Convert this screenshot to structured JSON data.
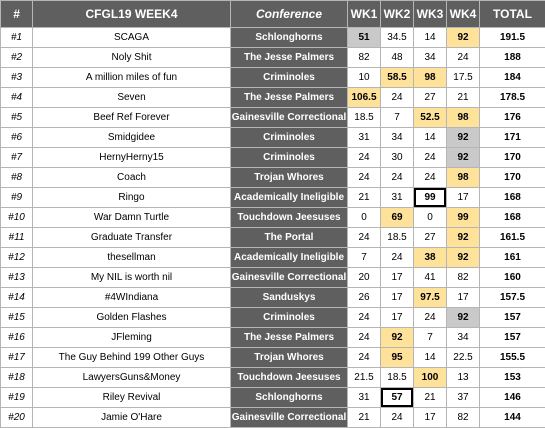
{
  "header": {
    "rank": "#",
    "team": "CFGL19 WEEK4",
    "conference": "Conference",
    "wk1": "WK1",
    "wk2": "WK2",
    "wk3": "WK3",
    "wk4": "WK4",
    "total": "TOTAL"
  },
  "highlight_colors": {
    "yellow": "#ffe29a",
    "gray": "#c9c9c9",
    "header": "#5f5f5f"
  },
  "rows": [
    {
      "rank": "#1",
      "team": "SCAGA",
      "conference": "Schlonghorns",
      "wk1": "51",
      "wk2": "34.5",
      "wk3": "14",
      "wk4": "92",
      "total": "191.5",
      "hl": {
        "wk1": "gray",
        "wk4": "yellow"
      }
    },
    {
      "rank": "#2",
      "team": "Noly Shit",
      "conference": "The Jesse Palmers",
      "wk1": "82",
      "wk2": "48",
      "wk3": "34",
      "wk4": "24",
      "total": "188",
      "hl": {}
    },
    {
      "rank": "#3",
      "team": "A million miles of fun",
      "conference": "Criminoles",
      "wk1": "10",
      "wk2": "58.5",
      "wk3": "98",
      "wk4": "17.5",
      "total": "184",
      "hl": {
        "wk2": "yellow",
        "wk3": "yellow"
      }
    },
    {
      "rank": "#4",
      "team": "Seven",
      "conference": "The Jesse Palmers",
      "wk1": "106.5",
      "wk2": "24",
      "wk3": "27",
      "wk4": "21",
      "total": "178.5",
      "hl": {
        "wk1": "yellow"
      }
    },
    {
      "rank": "#5",
      "team": "Beef Ref Forever",
      "conference": "Gainesville Correctional",
      "wk1": "18.5",
      "wk2": "7",
      "wk3": "52.5",
      "wk4": "98",
      "total": "176",
      "hl": {
        "wk3": "yellow",
        "wk4": "yellow"
      }
    },
    {
      "rank": "#6",
      "team": "Smidgidee",
      "conference": "Criminoles",
      "wk1": "31",
      "wk2": "34",
      "wk3": "14",
      "wk4": "92",
      "total": "171",
      "hl": {
        "wk4": "gray"
      }
    },
    {
      "rank": "#7",
      "team": "HernyHerny15",
      "conference": "Criminoles",
      "wk1": "24",
      "wk2": "30",
      "wk3": "24",
      "wk4": "92",
      "total": "170",
      "hl": {
        "wk4": "gray"
      }
    },
    {
      "rank": "#8",
      "team": "Coach",
      "conference": "Trojan Whores",
      "wk1": "24",
      "wk2": "24",
      "wk3": "24",
      "wk4": "98",
      "total": "170",
      "hl": {
        "wk4": "yellow"
      }
    },
    {
      "rank": "#9",
      "team": "Ringo",
      "conference": "Academically Ineligible",
      "wk1": "21",
      "wk2": "31",
      "wk3": "99",
      "wk4": "17",
      "total": "168",
      "hl": {
        "wk3": "boxed"
      }
    },
    {
      "rank": "#10",
      "team": "War Damn Turtle",
      "conference": "Touchdown Jeesuses",
      "wk1": "0",
      "wk2": "69",
      "wk3": "0",
      "wk4": "99",
      "total": "168",
      "hl": {
        "wk2": "yellow",
        "wk4": "yellow"
      }
    },
    {
      "rank": "#11",
      "team": "Graduate Transfer",
      "conference": "The Portal",
      "wk1": "24",
      "wk2": "18.5",
      "wk3": "27",
      "wk4": "92",
      "total": "161.5",
      "hl": {
        "wk4": "yellow"
      }
    },
    {
      "rank": "#12",
      "team": "thesellman",
      "conference": "Academically Ineligible",
      "wk1": "7",
      "wk2": "24",
      "wk3": "38",
      "wk4": "92",
      "total": "161",
      "hl": {
        "wk3": "yellow",
        "wk4": "yellow"
      }
    },
    {
      "rank": "#13",
      "team": "My NIL is worth nil",
      "conference": "Gainesville Correctional",
      "wk1": "20",
      "wk2": "17",
      "wk3": "41",
      "wk4": "82",
      "total": "160",
      "hl": {}
    },
    {
      "rank": "#14",
      "team": "#4WIndiana",
      "conference": "Sanduskys",
      "wk1": "26",
      "wk2": "17",
      "wk3": "97.5",
      "wk4": "17",
      "total": "157.5",
      "hl": {
        "wk3": "yellow"
      }
    },
    {
      "rank": "#15",
      "team": "Golden Flashes",
      "conference": "Criminoles",
      "wk1": "24",
      "wk2": "17",
      "wk3": "24",
      "wk4": "92",
      "total": "157",
      "hl": {
        "wk4": "gray"
      }
    },
    {
      "rank": "#16",
      "team": "JFleming",
      "conference": "The Jesse Palmers",
      "wk1": "24",
      "wk2": "92",
      "wk3": "7",
      "wk4": "34",
      "total": "157",
      "hl": {
        "wk2": "yellow"
      }
    },
    {
      "rank": "#17",
      "team": "The Guy Behind 199 Other Guys",
      "conference": "Trojan Whores",
      "wk1": "24",
      "wk2": "95",
      "wk3": "14",
      "wk4": "22.5",
      "total": "155.5",
      "hl": {
        "wk2": "yellow"
      }
    },
    {
      "rank": "#18",
      "team": "LawyersGuns&Money",
      "conference": "Touchdown Jeesuses",
      "wk1": "21.5",
      "wk2": "18.5",
      "wk3": "100",
      "wk4": "13",
      "total": "153",
      "hl": {
        "wk3": "yellow"
      }
    },
    {
      "rank": "#19",
      "team": "Riley Revival",
      "conference": "Schlonghorns",
      "wk1": "31",
      "wk2": "57",
      "wk3": "21",
      "wk4": "37",
      "total": "146",
      "hl": {
        "wk2": "boxed"
      }
    },
    {
      "rank": "#20",
      "team": "Jamie O'Hare",
      "conference": "Gainesville Correctional",
      "wk1": "21",
      "wk2": "24",
      "wk3": "17",
      "wk4": "82",
      "total": "144",
      "hl": {}
    }
  ]
}
